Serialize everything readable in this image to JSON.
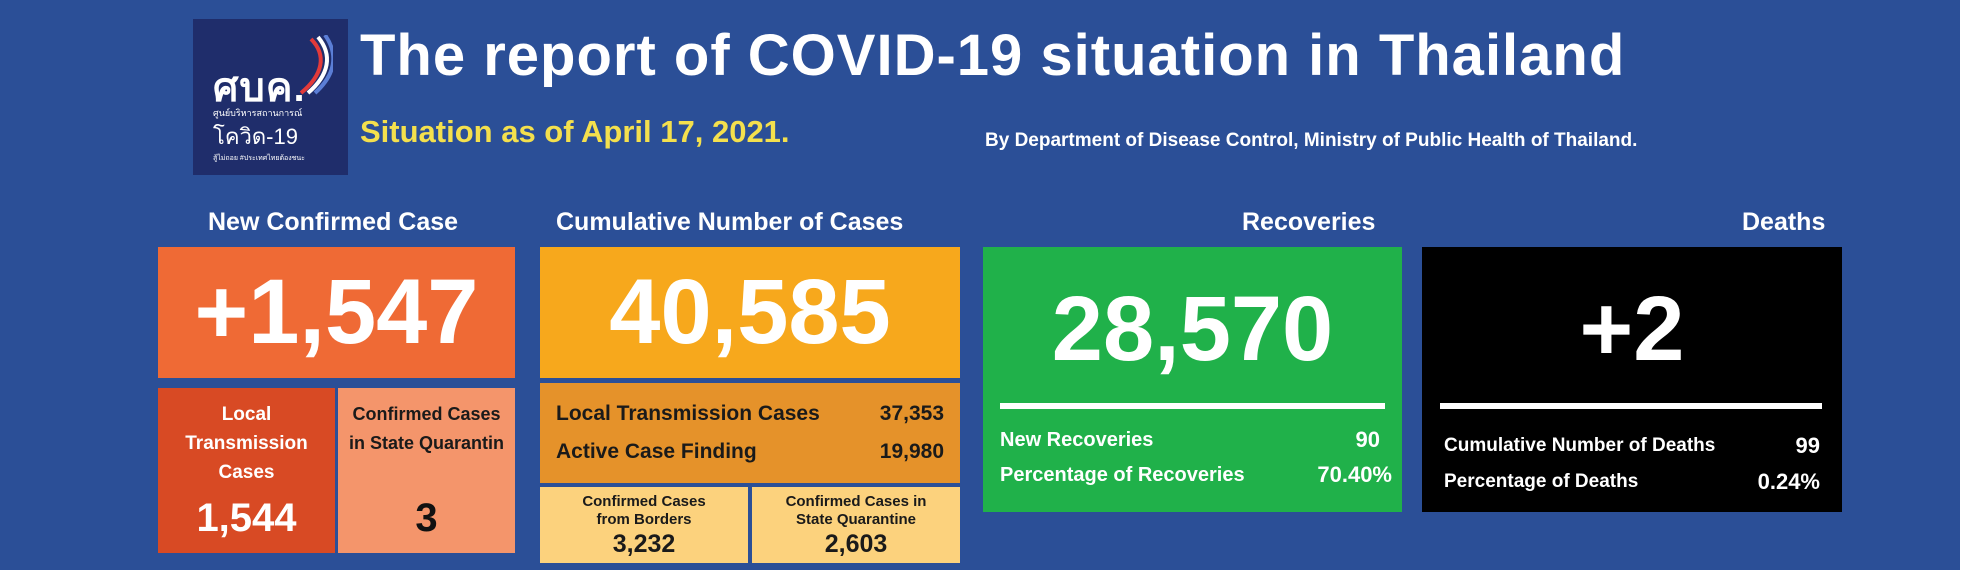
{
  "logo": {
    "line1": "ศบค.",
    "line2": "ศูนย์บริหารสถานการณ์",
    "line3": "โควิด-19",
    "line4": "สู้ไม่ถอย  #ประเทศไทยต้องชนะ"
  },
  "header": {
    "title": "The report of COVID-19 situation in Thailand",
    "subtitle": "Situation as of April 17, 2021.",
    "source": "By Department of Disease Control, Ministry of Public Health of Thailand."
  },
  "new_confirmed": {
    "heading": "New Confirmed Case",
    "value": "+1,547",
    "local_label": "Local Transmission Cases",
    "local_value": "1,544",
    "quarantine_label": "Confirmed Cases in State Quarantin",
    "quarantine_value": "3"
  },
  "cumulative": {
    "heading": "Cumulative Number of Cases",
    "value": "40,585",
    "local_label": "Local Transmission Cases",
    "local_value": "37,353",
    "active_label": "Active Case Finding",
    "active_value": "19,980",
    "borders_label": "Confirmed Cases from Borders",
    "borders_value": "3,232",
    "quarantine_label": "Confirmed Cases in State Quarantine",
    "quarantine_value": "2,603"
  },
  "recoveries": {
    "heading": "Recoveries",
    "value": "28,570",
    "new_label": "New Recoveries",
    "new_value": "90",
    "pct_label": "Percentage of Recoveries",
    "pct_value": "70.40%"
  },
  "deaths": {
    "heading": "Deaths",
    "value": "+2",
    "cum_label": "Cumulative Number of Deaths",
    "cum_value": "99",
    "pct_label": "Percentage of Deaths",
    "pct_value": "0.24%"
  },
  "colors": {
    "background": "#2b4f97",
    "new_case": "#ef6a35",
    "local_case": "#d84a24",
    "quarantine_case": "#f4956b",
    "cumulative": "#f7a81c",
    "cumulative_detail": "#e5922a",
    "cumulative_sub": "#fcd27d",
    "recoveries": "#20b14a",
    "deaths": "#000000",
    "subtitle": "#f4e04d"
  }
}
